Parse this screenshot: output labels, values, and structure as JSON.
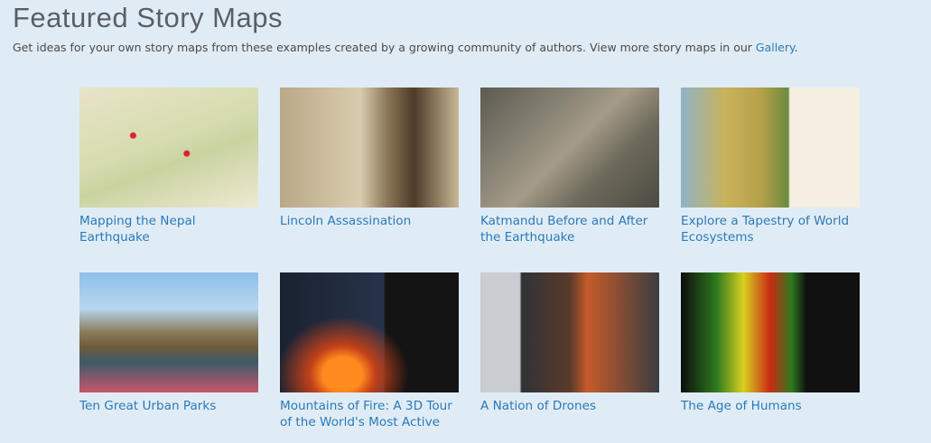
{
  "header": {
    "title": "Featured Story Maps",
    "description": {
      "text": "Get ideas for your own story maps from these examples created by a growing community of authors. View more story maps in our ",
      "link": "Gallery",
      "after": "."
    }
  },
  "items": [
    {
      "title": "Mapping the Nepal Earthquake"
    },
    {
      "title": "Lincoln Assassination"
    },
    {
      "title": "Katmandu Before and After the Earthquake"
    },
    {
      "title": "Explore a Tapestry of World Ecosystems"
    },
    {
      "title": "Ten Great Urban Parks"
    },
    {
      "title": "Mountains of Fire: A 3D Tour of the World's Most Active"
    },
    {
      "title": "A Nation of Drones"
    },
    {
      "title": "The Age of Humans"
    }
  ]
}
